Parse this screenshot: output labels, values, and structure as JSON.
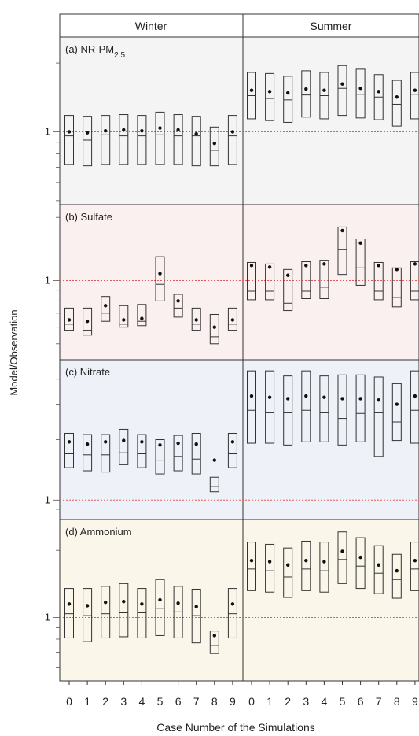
{
  "chart_data": {
    "type": "box",
    "ylabel": "Model/Observation",
    "xlabel": "Case Number of the Simulations",
    "columns": [
      "Winter",
      "Summer"
    ],
    "categories": [
      "0",
      "1",
      "2",
      "3",
      "4",
      "5",
      "6",
      "7",
      "8",
      "9"
    ],
    "reference_line": 1,
    "scale": "log",
    "colors": {
      "box": "#333333",
      "reference": "#e05a5a",
      "bg_a": "#f4f4f4",
      "bg_b": "#fbf0f0",
      "bg_c": "#eef1f8",
      "bg_d": "#fbf6ea"
    },
    "panels": [
      {
        "label": "(a) NR-PM",
        "label_sub": "2.5",
        "bg": "bg_a",
        "ylim": [
          0.48,
          2.6
        ],
        "yticks": [
          1
        ],
        "ytick_labels": [
          "1"
        ],
        "winter": {
          "q1": [
            0.72,
            0.71,
            0.72,
            0.72,
            0.72,
            0.72,
            0.72,
            0.71,
            0.71,
            0.72
          ],
          "median": [
            0.96,
            0.92,
            0.97,
            0.96,
            0.96,
            0.97,
            0.96,
            0.96,
            0.83,
            0.96
          ],
          "q3": [
            1.18,
            1.17,
            1.18,
            1.19,
            1.18,
            1.22,
            1.19,
            1.17,
            1.05,
            1.18
          ],
          "mean": [
            1.0,
            0.99,
            1.01,
            1.02,
            1.01,
            1.04,
            1.02,
            0.98,
            0.89,
            1.0
          ]
        },
        "summer": {
          "q1": [
            1.14,
            1.12,
            1.1,
            1.16,
            1.14,
            1.18,
            1.15,
            1.13,
            1.06,
            1.14
          ],
          "median": [
            1.44,
            1.4,
            1.38,
            1.45,
            1.44,
            1.55,
            1.46,
            1.42,
            1.32,
            1.46
          ],
          "q3": [
            1.82,
            1.8,
            1.75,
            1.85,
            1.82,
            1.95,
            1.88,
            1.78,
            1.68,
            1.82
          ],
          "mean": [
            1.52,
            1.5,
            1.48,
            1.54,
            1.52,
            1.62,
            1.55,
            1.5,
            1.42,
            1.52
          ]
        }
      },
      {
        "label": "(b) Sulfate",
        "label_sub": "",
        "bg": "bg_b",
        "ylim": [
          0.42,
          2.3
        ],
        "yticks": [
          1
        ],
        "ytick_labels": [
          "1"
        ],
        "winter": {
          "q1": [
            0.58,
            0.55,
            0.64,
            0.6,
            0.61,
            0.8,
            0.67,
            0.58,
            0.5,
            0.58
          ],
          "median": [
            0.62,
            0.58,
            0.7,
            0.62,
            0.64,
            0.96,
            0.74,
            0.62,
            0.54,
            0.62
          ],
          "q3": [
            0.74,
            0.74,
            0.84,
            0.76,
            0.77,
            1.3,
            0.86,
            0.74,
            0.69,
            0.74
          ],
          "mean": [
            0.65,
            0.64,
            0.76,
            0.65,
            0.66,
            1.08,
            0.8,
            0.65,
            0.6,
            0.65
          ]
        },
        "summer": {
          "q1": [
            0.81,
            0.81,
            0.72,
            0.82,
            0.82,
            1.07,
            0.95,
            0.81,
            0.75,
            0.81
          ],
          "median": [
            0.89,
            0.89,
            0.78,
            0.89,
            0.93,
            1.41,
            1.15,
            0.89,
            0.83,
            0.89
          ],
          "q3": [
            1.22,
            1.2,
            1.13,
            1.23,
            1.25,
            1.8,
            1.58,
            1.22,
            1.15,
            1.23
          ],
          "mean": [
            1.18,
            1.16,
            1.06,
            1.18,
            1.2,
            1.73,
            1.51,
            1.18,
            1.13,
            1.2
          ]
        }
      },
      {
        "label": "(c) Nitrate",
        "label_sub": "",
        "bg": "bg_c",
        "ylim": [
          0.8,
          5.0
        ],
        "yticks": [
          1
        ],
        "ytick_labels": [
          "1"
        ],
        "winter": {
          "q1": [
            1.45,
            1.4,
            1.38,
            1.5,
            1.45,
            1.35,
            1.4,
            1.35,
            1.1,
            1.45
          ],
          "median": [
            1.7,
            1.68,
            1.68,
            1.72,
            1.7,
            1.58,
            1.65,
            1.6,
            1.17,
            1.7
          ],
          "q3": [
            2.15,
            2.12,
            2.12,
            2.25,
            2.12,
            2.0,
            2.1,
            2.15,
            1.3,
            2.15
          ],
          "mean": [
            1.95,
            1.9,
            1.95,
            1.98,
            1.95,
            1.88,
            1.92,
            1.9,
            1.58,
            1.95
          ]
        },
        "summer": {
          "q1": [
            1.92,
            1.92,
            1.88,
            1.95,
            1.95,
            1.88,
            1.95,
            1.65,
            1.98,
            1.92
          ],
          "median": [
            2.8,
            2.72,
            2.72,
            2.8,
            2.72,
            2.55,
            2.7,
            2.72,
            2.45,
            2.8
          ],
          "q3": [
            4.4,
            4.4,
            4.15,
            4.4,
            4.15,
            4.2,
            4.2,
            4.1,
            3.8,
            4.4
          ],
          "mean": [
            3.3,
            3.25,
            3.2,
            3.3,
            3.25,
            3.2,
            3.2,
            3.15,
            3.0,
            3.3
          ]
        }
      },
      {
        "label": "(d) Ammonium",
        "label_sub": "",
        "bg": "bg_d",
        "ylim": [
          0.52,
          2.75
        ],
        "yticks": [
          1
        ],
        "ytick_labels": [
          "1"
        ],
        "winter": {
          "q1": [
            0.81,
            0.78,
            0.81,
            0.82,
            0.81,
            0.83,
            0.81,
            0.77,
            0.69,
            0.81
          ],
          "median": [
            1.04,
            1.02,
            1.04,
            1.05,
            1.05,
            1.1,
            1.06,
            1.02,
            0.75,
            1.04
          ],
          "q3": [
            1.35,
            1.35,
            1.38,
            1.42,
            1.35,
            1.48,
            1.38,
            1.34,
            0.87,
            1.35
          ],
          "mean": [
            1.15,
            1.13,
            1.17,
            1.18,
            1.15,
            1.2,
            1.16,
            1.12,
            0.83,
            1.15
          ]
        },
        "summer": {
          "q1": [
            1.32,
            1.3,
            1.23,
            1.32,
            1.3,
            1.42,
            1.35,
            1.28,
            1.22,
            1.32
          ],
          "median": [
            1.65,
            1.62,
            1.52,
            1.65,
            1.62,
            1.82,
            1.7,
            1.58,
            1.48,
            1.65
          ],
          "q3": [
            2.18,
            2.13,
            2.05,
            2.2,
            2.18,
            2.42,
            2.28,
            2.1,
            1.92,
            2.18
          ],
          "mean": [
            1.8,
            1.78,
            1.72,
            1.8,
            1.78,
            1.98,
            1.86,
            1.72,
            1.62,
            1.8
          ]
        }
      }
    ]
  }
}
